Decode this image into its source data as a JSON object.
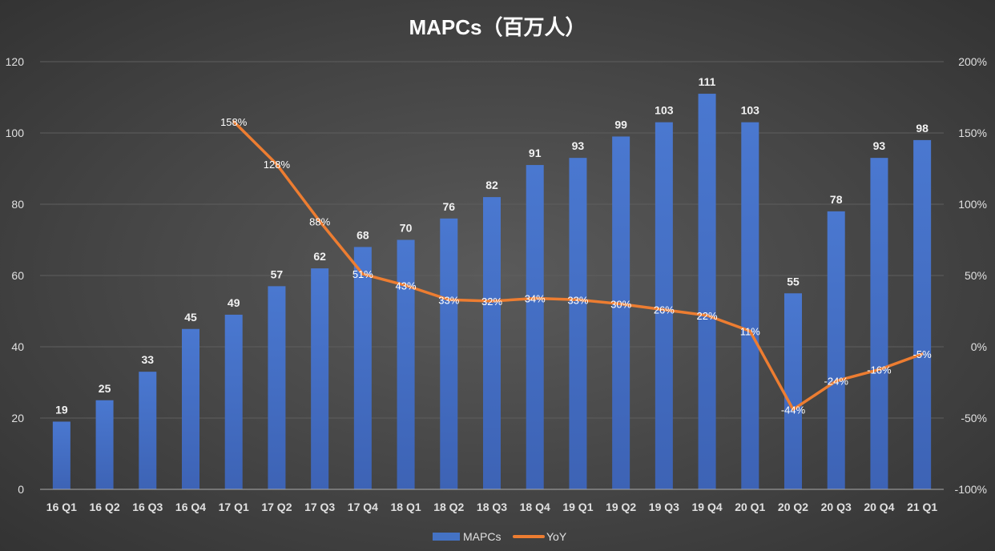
{
  "chart_data": {
    "type": "bar+line",
    "title": "MAPCs（百万人）",
    "categories": [
      "16 Q1",
      "16 Q2",
      "16 Q3",
      "16 Q4",
      "17 Q1",
      "17 Q2",
      "17 Q3",
      "17 Q4",
      "18 Q1",
      "18 Q2",
      "18 Q3",
      "18 Q4",
      "19 Q1",
      "19 Q2",
      "19 Q3",
      "19 Q4",
      "20 Q1",
      "20 Q2",
      "20 Q3",
      "20 Q4",
      "21 Q1"
    ],
    "series": [
      {
        "name": "MAPCs",
        "type": "bar",
        "axis": "left",
        "color": "#4472c4",
        "values": [
          19,
          25,
          33,
          45,
          49,
          57,
          62,
          68,
          70,
          76,
          82,
          91,
          93,
          99,
          103,
          111,
          103,
          55,
          78,
          93,
          98
        ]
      },
      {
        "name": "YoY",
        "type": "line",
        "axis": "right",
        "color": "#ed7d31",
        "unit": "%",
        "values": [
          null,
          null,
          null,
          null,
          158,
          128,
          88,
          51,
          43,
          33,
          32,
          34,
          33,
          30,
          26,
          22,
          11,
          -44,
          -24,
          -16,
          -5
        ]
      }
    ],
    "ylim": [
      0,
      120
    ],
    "yticks": [
      0,
      20,
      40,
      60,
      80,
      100,
      120
    ],
    "y2lim": [
      -100,
      200
    ],
    "y2ticks": [
      "-100%",
      "-50%",
      "0%",
      "50%",
      "100%",
      "150%",
      "200%"
    ],
    "grid": true,
    "legend": "bottom"
  }
}
